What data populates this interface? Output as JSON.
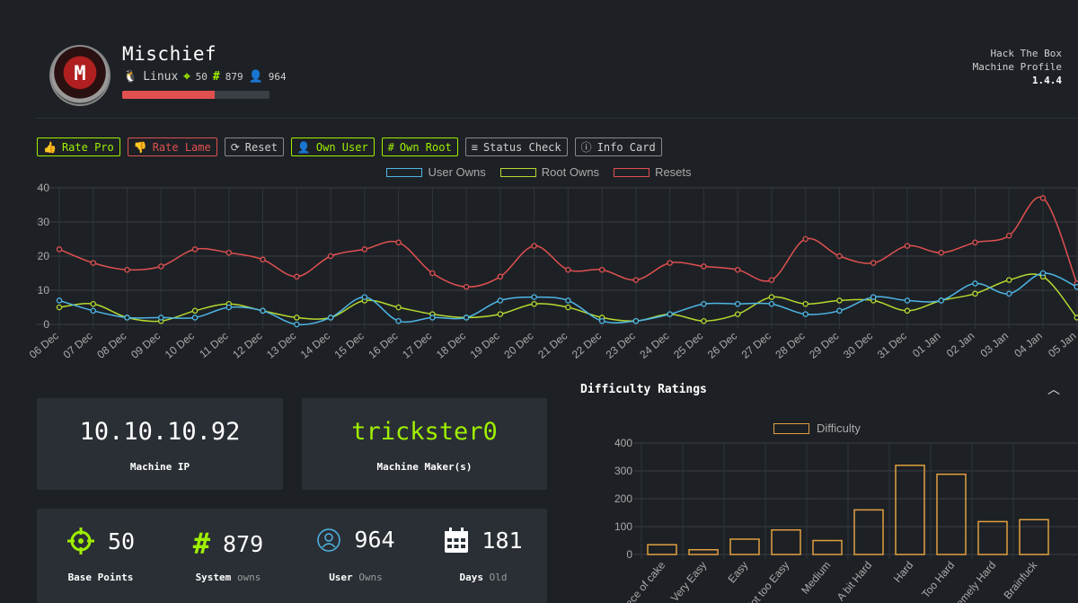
{
  "header": {
    "avatar_letter": "M",
    "machine_name": "Mischief",
    "os": "Linux",
    "points": "50",
    "system_owns": "879",
    "user_owns": "964",
    "rating_fraction": 0.63,
    "profile_line1": "Hack The Box",
    "profile_line2": "Machine Profile",
    "version": "1.4.4"
  },
  "toolbar": {
    "rate_pro": "Rate Pro",
    "rate_lame": "Rate Lame",
    "reset": "Reset",
    "own_user": "Own User",
    "own_root": "Own Root",
    "status_check": "Status Check",
    "info_card": "Info Card"
  },
  "colors": {
    "accent_green": "#9fef00",
    "red": "#e05050",
    "blue": "#4fb6e6",
    "yellow": "#b5d930",
    "orange": "#e0a040"
  },
  "chart_data": [
    {
      "type": "line",
      "x": [
        "06 Dec",
        "07 Dec",
        "08 Dec",
        "09 Dec",
        "10 Dec",
        "11 Dec",
        "12 Dec",
        "13 Dec",
        "14 Dec",
        "15 Dec",
        "16 Dec",
        "17 Dec",
        "18 Dec",
        "19 Dec",
        "20 Dec",
        "21 Dec",
        "22 Dec",
        "23 Dec",
        "24 Dec",
        "25 Dec",
        "26 Dec",
        "27 Dec",
        "28 Dec",
        "29 Dec",
        "30 Dec",
        "31 Dec",
        "01 Jan",
        "02 Jan",
        "03 Jan",
        "04 Jan",
        "05 Jan"
      ],
      "series": [
        {
          "name": "User Owns",
          "color": "#4fb6e6",
          "values": [
            7,
            4,
            2,
            2,
            2,
            5,
            4,
            0,
            2,
            8,
            1,
            2,
            2,
            7,
            8,
            7,
            1,
            1,
            3,
            6,
            6,
            6,
            3,
            4,
            8,
            7,
            7,
            12,
            9,
            15,
            11
          ]
        },
        {
          "name": "Root Owns",
          "color": "#b5d930",
          "values": [
            5,
            6,
            2,
            1,
            4,
            6,
            4,
            2,
            2,
            7,
            5,
            3,
            2,
            3,
            6,
            5,
            2,
            1,
            3,
            1,
            3,
            8,
            6,
            7,
            7,
            4,
            7,
            9,
            13,
            14,
            2
          ]
        },
        {
          "name": "Resets",
          "color": "#e05050",
          "values": [
            22,
            18,
            16,
            17,
            22,
            21,
            19,
            14,
            20,
            22,
            24,
            15,
            11,
            14,
            23,
            16,
            16,
            13,
            18,
            17,
            16,
            13,
            25,
            20,
            18,
            23,
            21,
            24,
            26,
            37,
            12
          ]
        }
      ],
      "ylim": [
        0,
        40
      ],
      "yticks": [
        0,
        10,
        20,
        30,
        40
      ],
      "grid": true,
      "legend": "top"
    },
    {
      "type": "bar",
      "title": "Difficulty Ratings",
      "categories": [
        "Piece of cake",
        "Very Easy",
        "Easy",
        "Not too Easy",
        "Medium",
        "A bit Hard",
        "Hard",
        "Too Hard",
        "Extremely Hard",
        "Brainfuck"
      ],
      "series": [
        {
          "name": "Difficulty",
          "color": "#e0a040",
          "values": [
            35,
            17,
            55,
            88,
            50,
            160,
            320,
            288,
            118,
            125
          ]
        }
      ],
      "ylim": [
        0,
        400
      ],
      "yticks": [
        0,
        100,
        200,
        300,
        400
      ],
      "grid": true,
      "legend": "top"
    }
  ],
  "cards": {
    "ip": "10.10.10.92",
    "ip_label": "Machine IP",
    "maker": "trickster0",
    "maker_label": "Machine Maker(s)"
  },
  "stats": [
    {
      "value": "50",
      "label": "Base Points",
      "sub": "",
      "icon": "crosshair-icon"
    },
    {
      "value": "879",
      "label": "System",
      "sub": "owns",
      "icon": "hash-icon"
    },
    {
      "value": "964",
      "label": "User",
      "sub": "Owns",
      "icon": "user-icon"
    },
    {
      "value": "181",
      "label": "Days",
      "sub": "Old",
      "icon": "calendar-icon"
    }
  ],
  "difficulty": {
    "title": "Difficulty Ratings",
    "collapse_glyph": "^"
  }
}
